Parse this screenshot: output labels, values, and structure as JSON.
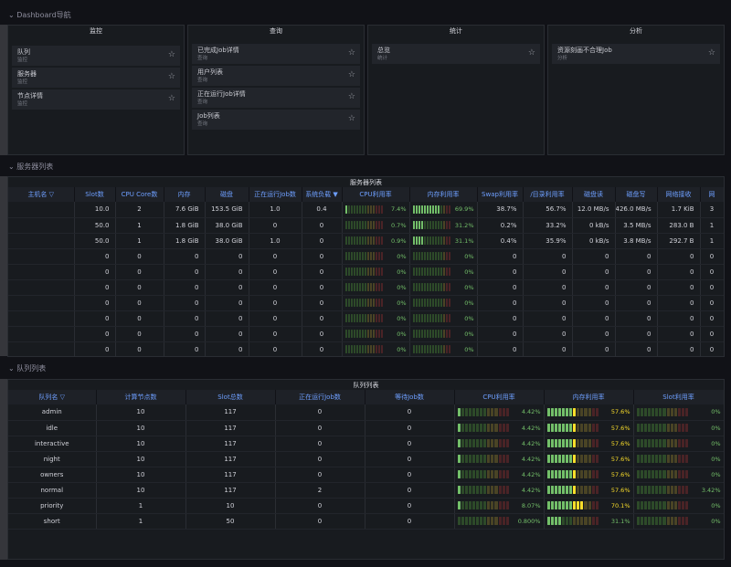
{
  "rows": {
    "nav": "Dashboard导航",
    "servers": "服务器列表",
    "queues": "队列列表"
  },
  "nav_panels": [
    {
      "title": "监控",
      "links": [
        {
          "title": "队列",
          "sub": "监控"
        },
        {
          "title": "服务器",
          "sub": "监控"
        },
        {
          "title": "节点详情",
          "sub": "监控"
        }
      ]
    },
    {
      "title": "查询",
      "links": [
        {
          "title": "已完成Job详情",
          "sub": "查询"
        },
        {
          "title": "用户列表",
          "sub": "查询"
        },
        {
          "title": "正在运行Job详情",
          "sub": "查询"
        },
        {
          "title": "Job列表",
          "sub": "查询"
        }
      ]
    },
    {
      "title": "统计",
      "links": [
        {
          "title": "总览",
          "sub": "统计"
        }
      ]
    },
    {
      "title": "分析",
      "links": [
        {
          "title": "资源刻画不合理Job",
          "sub": "分析"
        }
      ]
    }
  ],
  "server_table": {
    "title": "服务器列表",
    "columns": [
      "主机名",
      "Slot数",
      "CPU Core数",
      "内存",
      "磁盘",
      "正在运行Job数",
      "系统负载",
      "CPU利用率",
      "内存利用率",
      "Swap利用率",
      "/目录利用率",
      "磁盘读",
      "磁盘写",
      "网络接收",
      "网"
    ],
    "sort_indicator": "▼",
    "rows": [
      {
        "slot": "10.0",
        "cores": "2",
        "mem": "7.6 GiB",
        "disk": "153.5 GiB",
        "jobs": "1.0",
        "load": "0.4",
        "cpu": 7.4,
        "cpu_label": "7.4%",
        "memu": 69.9,
        "memu_label": "69.9%",
        "swap": "38.7%",
        "root": "56.7%",
        "rd": "12.0 MB/s",
        "wr": "426.0 MB/s",
        "net": "1.7 KiB",
        "x": "3"
      },
      {
        "slot": "50.0",
        "cores": "1",
        "mem": "1.8 GiB",
        "disk": "38.0 GiB",
        "jobs": "0",
        "load": "0",
        "cpu": 0.7,
        "cpu_label": "0.7%",
        "memu": 31.2,
        "memu_label": "31.2%",
        "swap": "0.2%",
        "root": "33.2%",
        "rd": "0 kB/s",
        "wr": "3.5 MB/s",
        "net": "283.0 B",
        "x": "1"
      },
      {
        "slot": "50.0",
        "cores": "1",
        "mem": "1.8 GiB",
        "disk": "38.0 GiB",
        "jobs": "1.0",
        "load": "0",
        "cpu": 0.9,
        "cpu_label": "0.9%",
        "memu": 31.1,
        "memu_label": "31.1%",
        "swap": "0.4%",
        "root": "35.9%",
        "rd": "0 kB/s",
        "wr": "3.8 MB/s",
        "net": "292.7 B",
        "x": "1"
      },
      {
        "slot": "0",
        "cores": "0",
        "mem": "0",
        "disk": "0",
        "jobs": "0",
        "load": "0",
        "cpu": 0,
        "cpu_label": "0%",
        "memu": 0,
        "memu_label": "0%",
        "swap": "0",
        "root": "0",
        "rd": "0",
        "wr": "0",
        "net": "0",
        "x": "0"
      },
      {
        "slot": "0",
        "cores": "0",
        "mem": "0",
        "disk": "0",
        "jobs": "0",
        "load": "0",
        "cpu": 0,
        "cpu_label": "0%",
        "memu": 0,
        "memu_label": "0%",
        "swap": "0",
        "root": "0",
        "rd": "0",
        "wr": "0",
        "net": "0",
        "x": "0"
      },
      {
        "slot": "0",
        "cores": "0",
        "mem": "0",
        "disk": "0",
        "jobs": "0",
        "load": "0",
        "cpu": 0,
        "cpu_label": "0%",
        "memu": 0,
        "memu_label": "0%",
        "swap": "0",
        "root": "0",
        "rd": "0",
        "wr": "0",
        "net": "0",
        "x": "0"
      },
      {
        "slot": "0",
        "cores": "0",
        "mem": "0",
        "disk": "0",
        "jobs": "0",
        "load": "0",
        "cpu": 0,
        "cpu_label": "0%",
        "memu": 0,
        "memu_label": "0%",
        "swap": "0",
        "root": "0",
        "rd": "0",
        "wr": "0",
        "net": "0",
        "x": "0"
      },
      {
        "slot": "0",
        "cores": "0",
        "mem": "0",
        "disk": "0",
        "jobs": "0",
        "load": "0",
        "cpu": 0,
        "cpu_label": "0%",
        "memu": 0,
        "memu_label": "0%",
        "swap": "0",
        "root": "0",
        "rd": "0",
        "wr": "0",
        "net": "0",
        "x": "0"
      },
      {
        "slot": "0",
        "cores": "0",
        "mem": "0",
        "disk": "0",
        "jobs": "0",
        "load": "0",
        "cpu": 0,
        "cpu_label": "0%",
        "memu": 0,
        "memu_label": "0%",
        "swap": "0",
        "root": "0",
        "rd": "0",
        "wr": "0",
        "net": "0",
        "x": "0"
      },
      {
        "slot": "0",
        "cores": "0",
        "mem": "0",
        "disk": "0",
        "jobs": "0",
        "load": "0",
        "cpu": 0,
        "cpu_label": "0%",
        "memu": 0,
        "memu_label": "0%",
        "swap": "0",
        "root": "0",
        "rd": "0",
        "wr": "0",
        "net": "0",
        "x": "0"
      }
    ]
  },
  "queue_table": {
    "title": "队列列表",
    "columns": [
      "队列名",
      "计算节点数",
      "Slot总数",
      "正在运行Job数",
      "等待Job数",
      "CPU利用率",
      "内存利用率",
      "Slot利用率"
    ],
    "rows": [
      {
        "name": "admin",
        "nodes": "10",
        "slots": "117",
        "running": "0",
        "waiting": "0",
        "cpu": 4.42,
        "cpu_label": "4.42%",
        "mem": 57.6,
        "mem_label": "57.6%",
        "slot": 0,
        "slot_label": "0%"
      },
      {
        "name": "idle",
        "nodes": "10",
        "slots": "117",
        "running": "0",
        "waiting": "0",
        "cpu": 4.42,
        "cpu_label": "4.42%",
        "mem": 57.6,
        "mem_label": "57.6%",
        "slot": 0,
        "slot_label": "0%"
      },
      {
        "name": "interactive",
        "nodes": "10",
        "slots": "117",
        "running": "0",
        "waiting": "0",
        "cpu": 4.42,
        "cpu_label": "4.42%",
        "mem": 57.6,
        "mem_label": "57.6%",
        "slot": 0,
        "slot_label": "0%"
      },
      {
        "name": "night",
        "nodes": "10",
        "slots": "117",
        "running": "0",
        "waiting": "0",
        "cpu": 4.42,
        "cpu_label": "4.42%",
        "mem": 57.6,
        "mem_label": "57.6%",
        "slot": 0,
        "slot_label": "0%"
      },
      {
        "name": "owners",
        "nodes": "10",
        "slots": "117",
        "running": "0",
        "waiting": "0",
        "cpu": 4.42,
        "cpu_label": "4.42%",
        "mem": 57.6,
        "mem_label": "57.6%",
        "slot": 0,
        "slot_label": "0%"
      },
      {
        "name": "normal",
        "nodes": "10",
        "slots": "117",
        "running": "2",
        "waiting": "0",
        "cpu": 4.42,
        "cpu_label": "4.42%",
        "mem": 57.6,
        "mem_label": "57.6%",
        "slot": 3.42,
        "slot_label": "3.42%"
      },
      {
        "name": "priority",
        "nodes": "1",
        "slots": "10",
        "running": "0",
        "waiting": "0",
        "cpu": 8.07,
        "cpu_label": "8.07%",
        "mem": 70.1,
        "mem_label": "70.1%",
        "slot": 0,
        "slot_label": "0%"
      },
      {
        "name": "short",
        "nodes": "1",
        "slots": "50",
        "running": "0",
        "waiting": "0",
        "cpu": 0.8,
        "cpu_label": "0.800%",
        "mem": 31.1,
        "mem_label": "31.1%",
        "slot": 0,
        "slot_label": "0%"
      }
    ]
  },
  "colors": {
    "green": "#73bf69",
    "yellow": "#fade2a",
    "red": "#f2495c",
    "dim_green": "#2d4a29",
    "dim_red": "#4a2326",
    "header_text": "#6e9fff"
  }
}
